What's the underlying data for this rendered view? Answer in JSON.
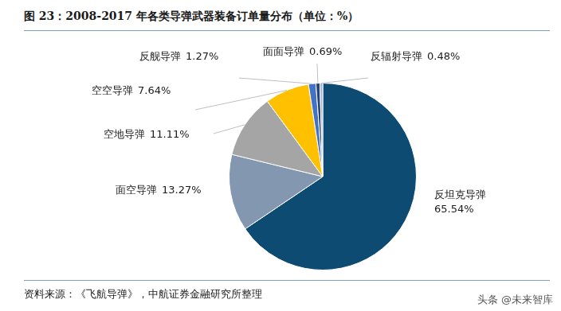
{
  "chart_data": {
    "type": "pie",
    "title": "图 23：2008-2017 年各类导弹武器装备订单量分布（单位：%）",
    "categories": [
      "反坦克导弹",
      "面空导弹",
      "空地导弹",
      "空空导弹",
      "反舰导弹",
      "面面导弹",
      "反辐射导弹"
    ],
    "values": [
      65.54,
      13.27,
      11.11,
      7.64,
      1.27,
      0.69,
      0.48
    ],
    "value_labels": [
      "65.54%",
      "13.27%",
      "11.11%",
      "7.64%",
      "1.27%",
      "0.69%",
      "0.48%"
    ],
    "colors": [
      "#0d4b72",
      "#8497b0",
      "#a5a5a5",
      "#ffc000",
      "#4472c4",
      "#264478",
      "#9fb6d6"
    ],
    "data_labels": true,
    "source": "资料来源：《飞航导弹》，中航证券金融研究所整理",
    "watermark": "头条 @未来智库"
  }
}
